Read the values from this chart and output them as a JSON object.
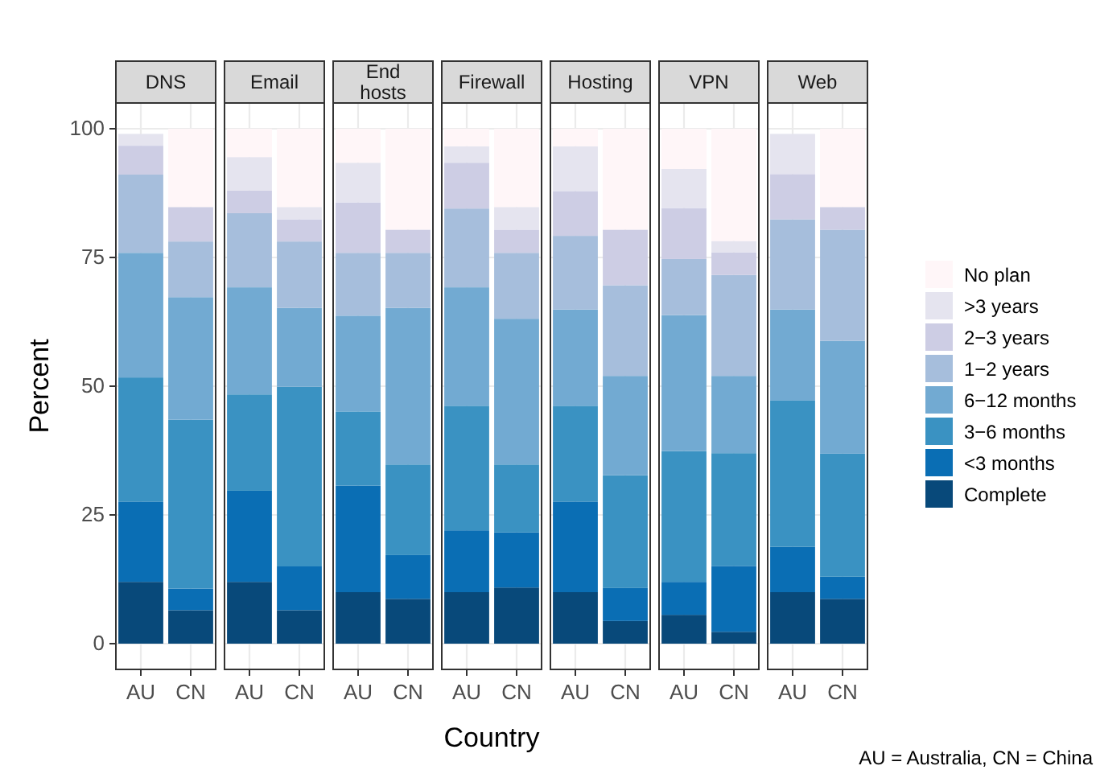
{
  "chart_data": [
    {
      "type": "bar",
      "stacked": true,
      "title": "DNS",
      "ylabel": "Percent",
      "categories": [
        "AU",
        "CN"
      ],
      "ylim": [
        -5,
        105
      ],
      "yticks": [
        0,
        25,
        50,
        75,
        100
      ],
      "grid": true,
      "legend": false,
      "series": [
        {
          "color": "#08497a",
          "values": [
            12.0,
            6.5
          ]
        },
        {
          "color": "#0a6eb4",
          "values": [
            15.6,
            4.2
          ]
        },
        {
          "color": "#3a92c2",
          "values": [
            24.1,
            32.8
          ]
        },
        {
          "color": "#72aad2",
          "values": [
            24.2,
            23.8
          ]
        },
        {
          "color": "#a6bedc",
          "values": [
            15.2,
            10.8
          ]
        },
        {
          "color": "#cdcde4",
          "values": [
            5.6,
            6.7
          ]
        },
        {
          "color": "#e5e4ef",
          "values": [
            2.3,
            0
          ]
        },
        {
          "color": "#fff6f8",
          "values": [
            0,
            15.2
          ]
        }
      ]
    },
    {
      "type": "bar",
      "stacked": true,
      "title": "Email",
      "categories": [
        "AU",
        "CN"
      ],
      "ylim": [
        -5,
        105
      ],
      "grid": true,
      "legend": false,
      "tick_labels": "x",
      "series": [
        {
          "color": "#08497a",
          "values": [
            12.0,
            6.5
          ]
        },
        {
          "color": "#0a6eb4",
          "values": [
            17.7,
            8.5
          ]
        },
        {
          "color": "#3a92c2",
          "values": [
            18.7,
            34.9
          ]
        },
        {
          "color": "#72aad2",
          "values": [
            20.8,
            15.3
          ]
        },
        {
          "color": "#a6bedc",
          "values": [
            14.4,
            12.9
          ]
        },
        {
          "color": "#cdcde4",
          "values": [
            4.4,
            4.3
          ]
        },
        {
          "color": "#e5e4ef",
          "values": [
            6.5,
            2.4
          ]
        },
        {
          "color": "#fff6f8",
          "values": [
            5.5,
            15.2
          ]
        }
      ]
    },
    {
      "type": "bar",
      "stacked": true,
      "title": "End hosts",
      "categories": [
        "AU",
        "CN"
      ],
      "ylim": [
        -5,
        105
      ],
      "grid": true,
      "legend": false,
      "tick_labels": "x",
      "series": [
        {
          "color": "#08497a",
          "values": [
            10.0,
            8.7
          ]
        },
        {
          "color": "#0a6eb4",
          "values": [
            20.7,
            8.5
          ]
        },
        {
          "color": "#3a92c2",
          "values": [
            14.4,
            17.6
          ]
        },
        {
          "color": "#72aad2",
          "values": [
            18.6,
            30.4
          ]
        },
        {
          "color": "#a6bedc",
          "values": [
            12.2,
            10.7
          ]
        },
        {
          "color": "#cdcde4",
          "values": [
            9.8,
            4.5
          ]
        },
        {
          "color": "#e5e4ef",
          "values": [
            7.7,
            0
          ]
        },
        {
          "color": "#fff6f8",
          "values": [
            6.6,
            19.6
          ]
        }
      ]
    },
    {
      "type": "bar",
      "stacked": true,
      "title": "Firewall",
      "xlabel": "Country",
      "categories": [
        "AU",
        "CN"
      ],
      "ylim": [
        -5,
        105
      ],
      "grid": true,
      "legend": false,
      "tick_labels": "x",
      "series": [
        {
          "color": "#08497a",
          "values": [
            10.0,
            10.9
          ]
        },
        {
          "color": "#0a6eb4",
          "values": [
            12.0,
            10.7
          ]
        },
        {
          "color": "#3a92c2",
          "values": [
            24.2,
            13.2
          ]
        },
        {
          "color": "#72aad2",
          "values": [
            23.0,
            28.3
          ]
        },
        {
          "color": "#a6bedc",
          "values": [
            15.3,
            12.8
          ]
        },
        {
          "color": "#cdcde4",
          "values": [
            8.9,
            4.5
          ]
        },
        {
          "color": "#e5e4ef",
          "values": [
            3.2,
            4.4
          ]
        },
        {
          "color": "#fff6f8",
          "values": [
            3.4,
            15.2
          ]
        }
      ]
    },
    {
      "type": "bar",
      "stacked": true,
      "title": "Hosting",
      "categories": [
        "AU",
        "CN"
      ],
      "ylim": [
        -5,
        105
      ],
      "grid": true,
      "legend": false,
      "tick_labels": "x",
      "series": [
        {
          "color": "#08497a",
          "values": [
            10.0,
            4.4
          ]
        },
        {
          "color": "#0a6eb4",
          "values": [
            17.6,
            6.4
          ]
        },
        {
          "color": "#3a92c2",
          "values": [
            18.6,
            21.9
          ]
        },
        {
          "color": "#72aad2",
          "values": [
            18.7,
            19.3
          ]
        },
        {
          "color": "#a6bedc",
          "values": [
            14.3,
            17.6
          ]
        },
        {
          "color": "#cdcde4",
          "values": [
            8.7,
            10.8
          ]
        },
        {
          "color": "#e5e4ef",
          "values": [
            8.7,
            0
          ]
        },
        {
          "color": "#fff6f8",
          "values": [
            3.4,
            19.6
          ]
        }
      ]
    },
    {
      "type": "bar",
      "stacked": true,
      "title": "VPN",
      "categories": [
        "AU",
        "CN"
      ],
      "ylim": [
        -5,
        105
      ],
      "grid": true,
      "legend": false,
      "tick_labels": "x",
      "series": [
        {
          "color": "#08497a",
          "values": [
            5.6,
            2.3
          ]
        },
        {
          "color": "#0a6eb4",
          "values": [
            6.4,
            12.8
          ]
        },
        {
          "color": "#3a92c2",
          "values": [
            25.4,
            21.9
          ]
        },
        {
          "color": "#72aad2",
          "values": [
            26.4,
            15.0
          ]
        },
        {
          "color": "#a6bedc",
          "values": [
            10.9,
            19.6
          ]
        },
        {
          "color": "#cdcde4",
          "values": [
            9.9,
            4.4
          ]
        },
        {
          "color": "#e5e4ef",
          "values": [
            7.6,
            2.2
          ]
        },
        {
          "color": "#fff6f8",
          "values": [
            7.8,
            21.8
          ]
        }
      ]
    },
    {
      "type": "bar",
      "stacked": true,
      "title": "Web",
      "categories": [
        "AU",
        "CN"
      ],
      "ylim": [
        -5,
        105
      ],
      "grid": true,
      "legend": "right",
      "tick_labels": "x",
      "annotations": [
        "AU = Australia, CN = China"
      ],
      "series": [
        {
          "name": "Complete",
          "color": "#08497a",
          "values": [
            10.0,
            8.7
          ]
        },
        {
          "name": "<3 months",
          "color": "#0a6eb4",
          "values": [
            8.8,
            4.3
          ]
        },
        {
          "name": "3−6 months",
          "color": "#3a92c2",
          "values": [
            28.4,
            23.9
          ]
        },
        {
          "name": "6−12 months",
          "color": "#72aad2",
          "values": [
            17.7,
            21.9
          ]
        },
        {
          "name": "1−2 years",
          "color": "#a6bedc",
          "values": [
            17.5,
            21.6
          ]
        },
        {
          "name": "2−3 years",
          "color": "#cdcde4",
          "values": [
            8.8,
            4.4
          ]
        },
        {
          "name": ">3 years",
          "color": "#e5e4ef",
          "values": [
            7.8,
            0
          ]
        },
        {
          "name": "No plan",
          "color": "#fff6f8",
          "values": [
            0,
            15.2
          ]
        }
      ]
    }
  ]
}
